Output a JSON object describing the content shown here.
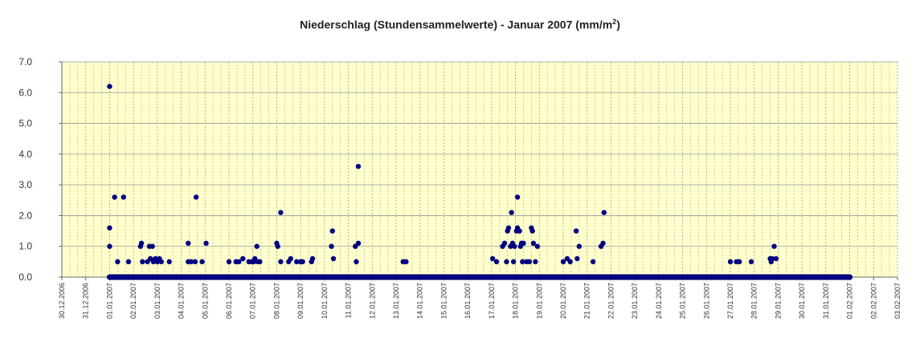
{
  "chart_data": {
    "type": "scatter",
    "title": "Niederschlag (Stundensammelwerte) - Januar 2007 (mm/m",
    "title_sup": "2",
    "title_end": ")",
    "xlabel": "",
    "ylabel": "",
    "ylim": [
      0,
      7
    ],
    "xlim": [
      "30.12.2006",
      "03.02.2007"
    ],
    "yticks": [
      "0.0",
      "1.0",
      "2.0",
      "3.0",
      "4.0",
      "5.0",
      "6.0",
      "7.0"
    ],
    "xticks": [
      "30.12.2006",
      "31.12.2006",
      "01.01.2007",
      "02.01.2007",
      "03.01.2007",
      "04.01.2007",
      "05.01.2007",
      "06.01.2007",
      "07.01.2007",
      "08.01.2007",
      "09.01.2007",
      "10.01.2007",
      "11.01.2007",
      "12.01.2007",
      "13.01.2007",
      "14.01.2007",
      "15.01.2007",
      "16.01.2007",
      "17.01.2007",
      "18.01.2007",
      "19.01.2007",
      "20.01.2007",
      "21.01.2007",
      "22.01.2007",
      "23.01.2007",
      "24.01.2007",
      "25.01.2007",
      "26.01.2007",
      "27.01.2007",
      "28.01.2007",
      "29.01.2007",
      "30.01.2007",
      "31.01.2007",
      "01.02.2007",
      "02.02.2007",
      "03.02.2007"
    ],
    "grid": true,
    "plot_background": "#ffffcc",
    "point_color": "#000080",
    "baseline": {
      "from": "01.01.2007",
      "to": "01.02.2007",
      "value": 0.0
    },
    "series": [
      {
        "points": [
          {
            "x": "01.01.2007 00:00",
            "y": 6.2
          },
          {
            "x": "01.01.2007 00:00",
            "y": 1.6
          },
          {
            "x": "01.01.2007 00:00",
            "y": 1.0
          },
          {
            "x": "01.01.2007 05:00",
            "y": 2.6
          },
          {
            "x": "01.01.2007 08:00",
            "y": 0.5
          },
          {
            "x": "01.01.2007 14:00",
            "y": 2.6
          },
          {
            "x": "01.01.2007 19:00",
            "y": 0.5
          },
          {
            "x": "02.01.2007 07:00",
            "y": 1.0
          },
          {
            "x": "02.01.2007 08:00",
            "y": 1.1
          },
          {
            "x": "02.01.2007 09:00",
            "y": 0.5
          },
          {
            "x": "02.01.2007 14:00",
            "y": 0.5
          },
          {
            "x": "02.01.2007 16:00",
            "y": 1.0
          },
          {
            "x": "02.01.2007 17:00",
            "y": 0.6
          },
          {
            "x": "02.01.2007 19:00",
            "y": 1.0
          },
          {
            "x": "02.01.2007 20:00",
            "y": 0.5
          },
          {
            "x": "02.01.2007 22:00",
            "y": 0.6
          },
          {
            "x": "03.01.2007 00:00",
            "y": 0.5
          },
          {
            "x": "03.01.2007 02:00",
            "y": 0.6
          },
          {
            "x": "03.01.2007 04:00",
            "y": 0.5
          },
          {
            "x": "03.01.2007 12:00",
            "y": 0.5
          },
          {
            "x": "04.01.2007 07:00",
            "y": 0.5
          },
          {
            "x": "04.01.2007 07:00",
            "y": 1.1
          },
          {
            "x": "04.01.2007 10:00",
            "y": 0.5
          },
          {
            "x": "04.01.2007 14:00",
            "y": 0.5
          },
          {
            "x": "04.01.2007 15:00",
            "y": 2.6
          },
          {
            "x": "04.01.2007 21:00",
            "y": 0.5
          },
          {
            "x": "05.01.2007 01:00",
            "y": 1.1
          },
          {
            "x": "06.01.2007 00:00",
            "y": 0.5
          },
          {
            "x": "06.01.2007 07:00",
            "y": 0.5
          },
          {
            "x": "06.01.2007 10:00",
            "y": 0.5
          },
          {
            "x": "06.01.2007 14:00",
            "y": 0.6
          },
          {
            "x": "06.01.2007 20:00",
            "y": 0.5
          },
          {
            "x": "06.01.2007 23:00",
            "y": 0.5
          },
          {
            "x": "07.01.2007 01:00",
            "y": 0.5
          },
          {
            "x": "07.01.2007 02:00",
            "y": 0.6
          },
          {
            "x": "07.01.2007 04:00",
            "y": 1.0
          },
          {
            "x": "07.01.2007 05:00",
            "y": 0.5
          },
          {
            "x": "07.01.2007 07:00",
            "y": 0.5
          },
          {
            "x": "08.01.2007 00:00",
            "y": 1.1
          },
          {
            "x": "08.01.2007 01:00",
            "y": 1.0
          },
          {
            "x": "08.01.2007 04:00",
            "y": 2.1
          },
          {
            "x": "08.01.2007 04:00",
            "y": 0.5
          },
          {
            "x": "08.01.2007 12:00",
            "y": 0.5
          },
          {
            "x": "08.01.2007 14:00",
            "y": 0.6
          },
          {
            "x": "08.01.2007 20:00",
            "y": 0.5
          },
          {
            "x": "09.01.2007 00:00",
            "y": 0.5
          },
          {
            "x": "09.01.2007 02:00",
            "y": 0.5
          },
          {
            "x": "09.01.2007 11:00",
            "y": 0.5
          },
          {
            "x": "09.01.2007 12:00",
            "y": 0.6
          },
          {
            "x": "10.01.2007 07:00",
            "y": 1.0
          },
          {
            "x": "10.01.2007 08:00",
            "y": 1.5
          },
          {
            "x": "10.01.2007 09:00",
            "y": 0.6
          },
          {
            "x": "11.01.2007 07:00",
            "y": 1.0
          },
          {
            "x": "11.01.2007 08:00",
            "y": 0.5
          },
          {
            "x": "11.01.2007 10:00",
            "y": 1.1
          },
          {
            "x": "11.01.2007 10:00",
            "y": 3.6
          },
          {
            "x": "13.01.2007 07:00",
            "y": 0.5
          },
          {
            "x": "13.01.2007 10:00",
            "y": 0.5
          },
          {
            "x": "17.01.2007 01:00",
            "y": 0.6
          },
          {
            "x": "17.01.2007 05:00",
            "y": 0.5
          },
          {
            "x": "17.01.2007 11:00",
            "y": 1.0
          },
          {
            "x": "17.01.2007 13:00",
            "y": 1.1
          },
          {
            "x": "17.01.2007 15:00",
            "y": 0.5
          },
          {
            "x": "17.01.2007 16:00",
            "y": 1.5
          },
          {
            "x": "17.01.2007 17:00",
            "y": 1.6
          },
          {
            "x": "17.01.2007 19:00",
            "y": 1.0
          },
          {
            "x": "17.01.2007 20:00",
            "y": 2.1
          },
          {
            "x": "17.01.2007 21:00",
            "y": 1.1
          },
          {
            "x": "17.01.2007 22:00",
            "y": 0.5
          },
          {
            "x": "17.01.2007 23:00",
            "y": 1.0
          },
          {
            "x": "18.01.2007 01:00",
            "y": 1.5
          },
          {
            "x": "18.01.2007 02:00",
            "y": 2.6
          },
          {
            "x": "18.01.2007 02:00",
            "y": 1.6
          },
          {
            "x": "18.01.2007 04:00",
            "y": 1.5
          },
          {
            "x": "18.01.2007 05:00",
            "y": 1.0
          },
          {
            "x": "18.01.2007 06:00",
            "y": 1.1
          },
          {
            "x": "18.01.2007 07:00",
            "y": 0.5
          },
          {
            "x": "18.01.2007 08:00",
            "y": 1.1
          },
          {
            "x": "18.01.2007 11:00",
            "y": 0.5
          },
          {
            "x": "18.01.2007 14:00",
            "y": 0.5
          },
          {
            "x": "18.01.2007 16:00",
            "y": 1.6
          },
          {
            "x": "18.01.2007 17:00",
            "y": 1.5
          },
          {
            "x": "18.01.2007 18:00",
            "y": 1.1
          },
          {
            "x": "18.01.2007 20:00",
            "y": 0.5
          },
          {
            "x": "18.01.2007 22:00",
            "y": 1.0
          },
          {
            "x": "20.01.2007 00:00",
            "y": 0.5
          },
          {
            "x": "20.01.2007 04:00",
            "y": 0.6
          },
          {
            "x": "20.01.2007 07:00",
            "y": 0.5
          },
          {
            "x": "20.01.2007 13:00",
            "y": 1.5
          },
          {
            "x": "20.01.2007 14:00",
            "y": 0.6
          },
          {
            "x": "20.01.2007 16:00",
            "y": 1.0
          },
          {
            "x": "21.01.2007 06:00",
            "y": 0.5
          },
          {
            "x": "21.01.2007 14:00",
            "y": 1.0
          },
          {
            "x": "21.01.2007 16:00",
            "y": 1.1
          },
          {
            "x": "21.01.2007 17:00",
            "y": 2.1
          },
          {
            "x": "27.01.2007 00:00",
            "y": 0.5
          },
          {
            "x": "27.01.2007 06:00",
            "y": 0.5
          },
          {
            "x": "27.01.2007 09:00",
            "y": 0.5
          },
          {
            "x": "27.01.2007 21:00",
            "y": 0.5
          },
          {
            "x": "28.01.2007 16:00",
            "y": 0.6
          },
          {
            "x": "28.01.2007 17:00",
            "y": 0.5
          },
          {
            "x": "28.01.2007 18:00",
            "y": 0.6
          },
          {
            "x": "28.01.2007 20:00",
            "y": 1.0
          },
          {
            "x": "28.01.2007 22:00",
            "y": 0.6
          }
        ]
      }
    ]
  }
}
